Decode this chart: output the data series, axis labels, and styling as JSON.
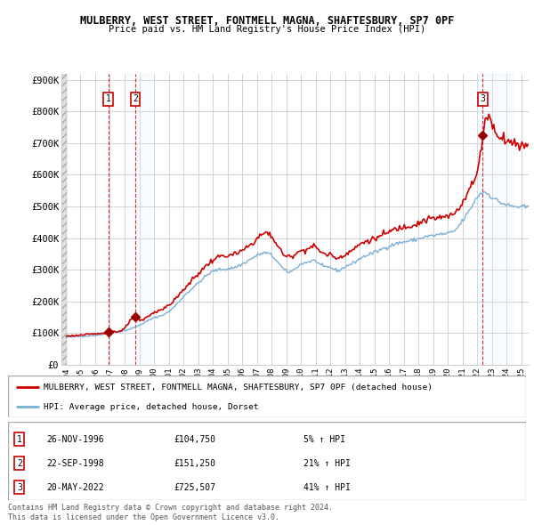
{
  "title": "MULBERRY, WEST STREET, FONTMELL MAGNA, SHAFTESBURY, SP7 0PF",
  "subtitle": "Price paid vs. HM Land Registry's House Price Index (HPI)",
  "ylabel_ticks": [
    "£0",
    "£100K",
    "£200K",
    "£300K",
    "£400K",
    "£500K",
    "£600K",
    "£700K",
    "£800K",
    "£900K"
  ],
  "ytick_values": [
    0,
    100000,
    200000,
    300000,
    400000,
    500000,
    600000,
    700000,
    800000,
    900000
  ],
  "xlim_left": 1993.7,
  "xlim_right": 2025.5,
  "ylim": [
    0,
    920000
  ],
  "legend_line1": "MULBERRY, WEST STREET, FONTMELL MAGNA, SHAFTESBURY, SP7 0PF (detached house)",
  "legend_line2": "HPI: Average price, detached house, Dorset",
  "transactions": [
    {
      "num": 1,
      "date": "26-NOV-1996",
      "price": 104750,
      "pct": "5%",
      "year": 1996.9
    },
    {
      "num": 2,
      "date": "22-SEP-1998",
      "price": 151250,
      "pct": "21%",
      "year": 1998.72
    },
    {
      "num": 3,
      "date": "20-MAY-2022",
      "price": 725507,
      "pct": "41%",
      "year": 2022.38
    }
  ],
  "footer_line1": "Contains HM Land Registry data © Crown copyright and database right 2024.",
  "footer_line2": "This data is licensed under the Open Government Licence v3.0.",
  "red_line_color": "#cc0000",
  "blue_line_color": "#7ab0d4",
  "marker_color": "#990000",
  "grid_color": "#cccccc",
  "bg_color": "#ffffff",
  "shade_color": "#ddeeff",
  "xtick_years": [
    1994,
    1995,
    1996,
    1997,
    1998,
    1999,
    2000,
    2001,
    2002,
    2003,
    2004,
    2005,
    2006,
    2007,
    2008,
    2009,
    2010,
    2011,
    2012,
    2013,
    2014,
    2015,
    2016,
    2017,
    2018,
    2019,
    2020,
    2021,
    2022,
    2023,
    2024,
    2025
  ]
}
